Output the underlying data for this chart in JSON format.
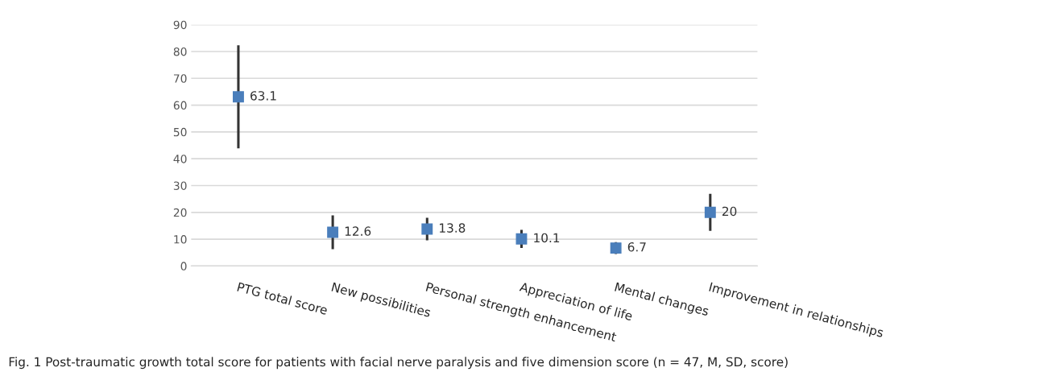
{
  "chart_data": {
    "type": "scatter",
    "categories": [
      "PTG total score",
      "New possibilities",
      "Personal strength enhancement",
      "Appreciation of life",
      "Mental changes",
      "Improvement in relationships"
    ],
    "values": [
      63.1,
      12.6,
      13.8,
      10.1,
      6.7,
      20
    ],
    "errors": [
      19.2,
      6.3,
      4.2,
      3.4,
      2.2,
      6.9
    ],
    "color": "#4a7ebb",
    "data_labels": true,
    "ylim": [
      0,
      90
    ],
    "yticks": [
      0,
      10,
      20,
      30,
      40,
      50,
      60,
      70,
      80,
      90
    ],
    "grid": "y",
    "annotations": [
      "Fig. 1 Post-traumatic growth total score for patients with facial nerve paralysis and five dimension score (n = 47, M, SD, score)"
    ]
  }
}
